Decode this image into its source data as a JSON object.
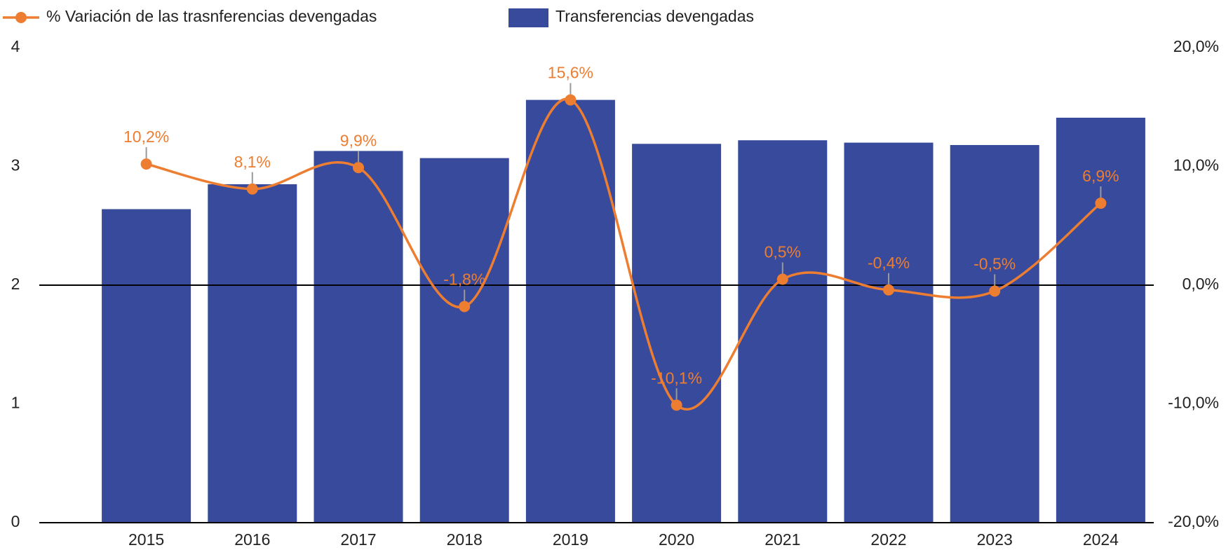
{
  "chart_data": {
    "type": "bar_line",
    "categories": [
      "2015",
      "2016",
      "2017",
      "2018",
      "2019",
      "2020",
      "2021",
      "2022",
      "2023",
      "2024"
    ],
    "series": [
      {
        "name": "% Variación de las trasnferencias devengadas",
        "type": "line",
        "axis": "y2",
        "color": "#ed7d31",
        "values": [
          10.2,
          8.1,
          9.9,
          -1.8,
          15.6,
          -10.1,
          0.5,
          -0.4,
          -0.5,
          6.9
        ],
        "value_labels": [
          "10,2%",
          "8,1%",
          "9,9%",
          "-1,8%",
          "15,6%",
          "-10,1%",
          "0,5%",
          "-0,4%",
          "-0,5%",
          "6,9%"
        ]
      },
      {
        "name": "Transferencias devengadas",
        "type": "bar",
        "color": "#374a9b",
        "values": [
          2.64,
          2.85,
          3.13,
          3.07,
          3.56,
          3.19,
          3.22,
          3.2,
          3.18,
          3.41
        ]
      }
    ],
    "ylim": [
      0,
      4
    ],
    "yticks": [
      0,
      1,
      2,
      3,
      4
    ],
    "y2lim": [
      -20,
      20
    ],
    "y2ticks": [
      {
        "value": -20,
        "label": "-20,0%"
      },
      {
        "value": -10,
        "label": "-10,0%"
      },
      {
        "value": 0,
        "label": "0,0%"
      },
      {
        "value": 10,
        "label": "10,0%"
      },
      {
        "value": 20,
        "label": "20,0%"
      }
    ],
    "legend": "top"
  }
}
